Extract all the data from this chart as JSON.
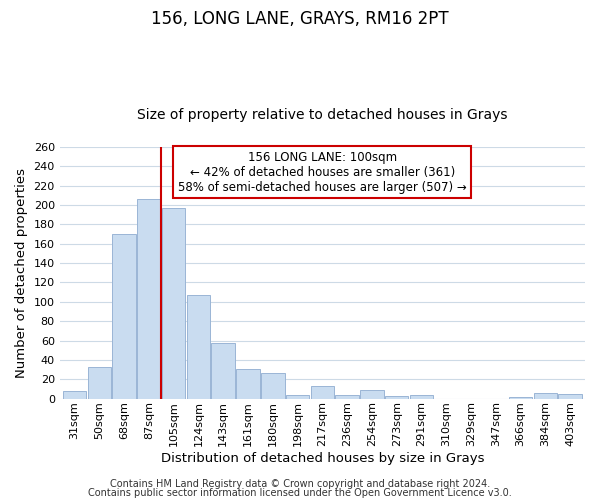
{
  "title": "156, LONG LANE, GRAYS, RM16 2PT",
  "subtitle": "Size of property relative to detached houses in Grays",
  "xlabel": "Distribution of detached houses by size in Grays",
  "ylabel": "Number of detached properties",
  "categories": [
    "31sqm",
    "50sqm",
    "68sqm",
    "87sqm",
    "105sqm",
    "124sqm",
    "143sqm",
    "161sqm",
    "180sqm",
    "198sqm",
    "217sqm",
    "236sqm",
    "254sqm",
    "273sqm",
    "291sqm",
    "310sqm",
    "329sqm",
    "347sqm",
    "366sqm",
    "384sqm",
    "403sqm"
  ],
  "values": [
    8,
    33,
    170,
    206,
    197,
    107,
    57,
    31,
    27,
    4,
    13,
    4,
    9,
    3,
    4,
    0,
    0,
    0,
    2,
    6,
    5
  ],
  "bar_color": "#c9dcf0",
  "bar_edge_color": "#9ab5d5",
  "vline_color": "#cc0000",
  "annotation_line1": "156 LONG LANE: 100sqm",
  "annotation_line2": "← 42% of detached houses are smaller (361)",
  "annotation_line3": "58% of semi-detached houses are larger (507) →",
  "annotation_box_edge_color": "#cc0000",
  "ylim": [
    0,
    260
  ],
  "yticks": [
    0,
    20,
    40,
    60,
    80,
    100,
    120,
    140,
    160,
    180,
    200,
    220,
    240,
    260
  ],
  "footer1": "Contains HM Land Registry data © Crown copyright and database right 2024.",
  "footer2": "Contains public sector information licensed under the Open Government Licence v3.0.",
  "background_color": "#ffffff",
  "grid_color": "#cddae6",
  "title_fontsize": 12,
  "subtitle_fontsize": 10,
  "axis_label_fontsize": 9.5,
  "tick_fontsize": 8,
  "annotation_fontsize": 8.5,
  "footer_fontsize": 7
}
